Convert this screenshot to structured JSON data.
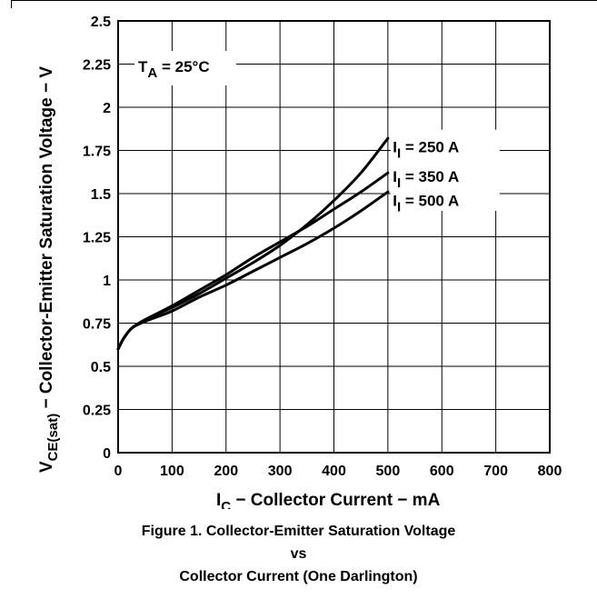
{
  "chart_data": {
    "type": "line",
    "xlabel": {
      "main": "I",
      "sub": "C",
      "rest": " − Collector Current − mA"
    },
    "ylabel": {
      "main": "V",
      "sub": "CE(sat)",
      "rest": " − Collector-Emitter Saturation Voltage − V"
    },
    "xlim": [
      0,
      800
    ],
    "ylim": [
      0,
      2.5
    ],
    "xticks": [
      "0",
      "100",
      "200",
      "300",
      "400",
      "500",
      "600",
      "700",
      "800"
    ],
    "yticks": [
      "0",
      "0.25",
      "0.5",
      "0.75",
      "1",
      "1.25",
      "1.5",
      "1.75",
      "2",
      "2.25",
      "2.5"
    ],
    "grid": true,
    "annotation": {
      "main": "T",
      "sub": "A",
      "rest": " = 25°C"
    },
    "series": [
      {
        "name": "I = 250 A",
        "label": {
          "main": "I",
          "sub": "I",
          "rest": " = 250   A"
        },
        "points": [
          [
            0,
            0.6
          ],
          [
            10,
            0.66
          ],
          [
            25,
            0.72
          ],
          [
            50,
            0.77
          ],
          [
            100,
            0.84
          ],
          [
            150,
            0.92
          ],
          [
            200,
            1.01
          ],
          [
            250,
            1.1
          ],
          [
            300,
            1.2
          ],
          [
            350,
            1.32
          ],
          [
            400,
            1.46
          ],
          [
            450,
            1.62
          ],
          [
            500,
            1.82
          ]
        ]
      },
      {
        "name": "I = 350 A",
        "label": {
          "main": "I",
          "sub": "I",
          "rest": " = 350   A"
        },
        "points": [
          [
            0,
            0.6
          ],
          [
            10,
            0.66
          ],
          [
            25,
            0.72
          ],
          [
            50,
            0.77
          ],
          [
            100,
            0.85
          ],
          [
            150,
            0.94
          ],
          [
            200,
            1.03
          ],
          [
            250,
            1.13
          ],
          [
            300,
            1.22
          ],
          [
            350,
            1.31
          ],
          [
            400,
            1.41
          ],
          [
            450,
            1.51
          ],
          [
            500,
            1.62
          ]
        ]
      },
      {
        "name": "I = 500 A",
        "label": {
          "main": "I",
          "sub": "I",
          "rest": " = 500   A"
        },
        "points": [
          [
            0,
            0.6
          ],
          [
            10,
            0.66
          ],
          [
            25,
            0.72
          ],
          [
            50,
            0.76
          ],
          [
            100,
            0.82
          ],
          [
            150,
            0.9
          ],
          [
            200,
            0.97
          ],
          [
            250,
            1.05
          ],
          [
            300,
            1.13
          ],
          [
            350,
            1.21
          ],
          [
            400,
            1.3
          ],
          [
            450,
            1.4
          ],
          [
            500,
            1.51
          ]
        ]
      }
    ]
  },
  "caption": {
    "line1": "Figure 1. Collector-Emitter Saturation Voltage",
    "line2": "vs",
    "line3": "Collector Current (One Darlington)"
  }
}
